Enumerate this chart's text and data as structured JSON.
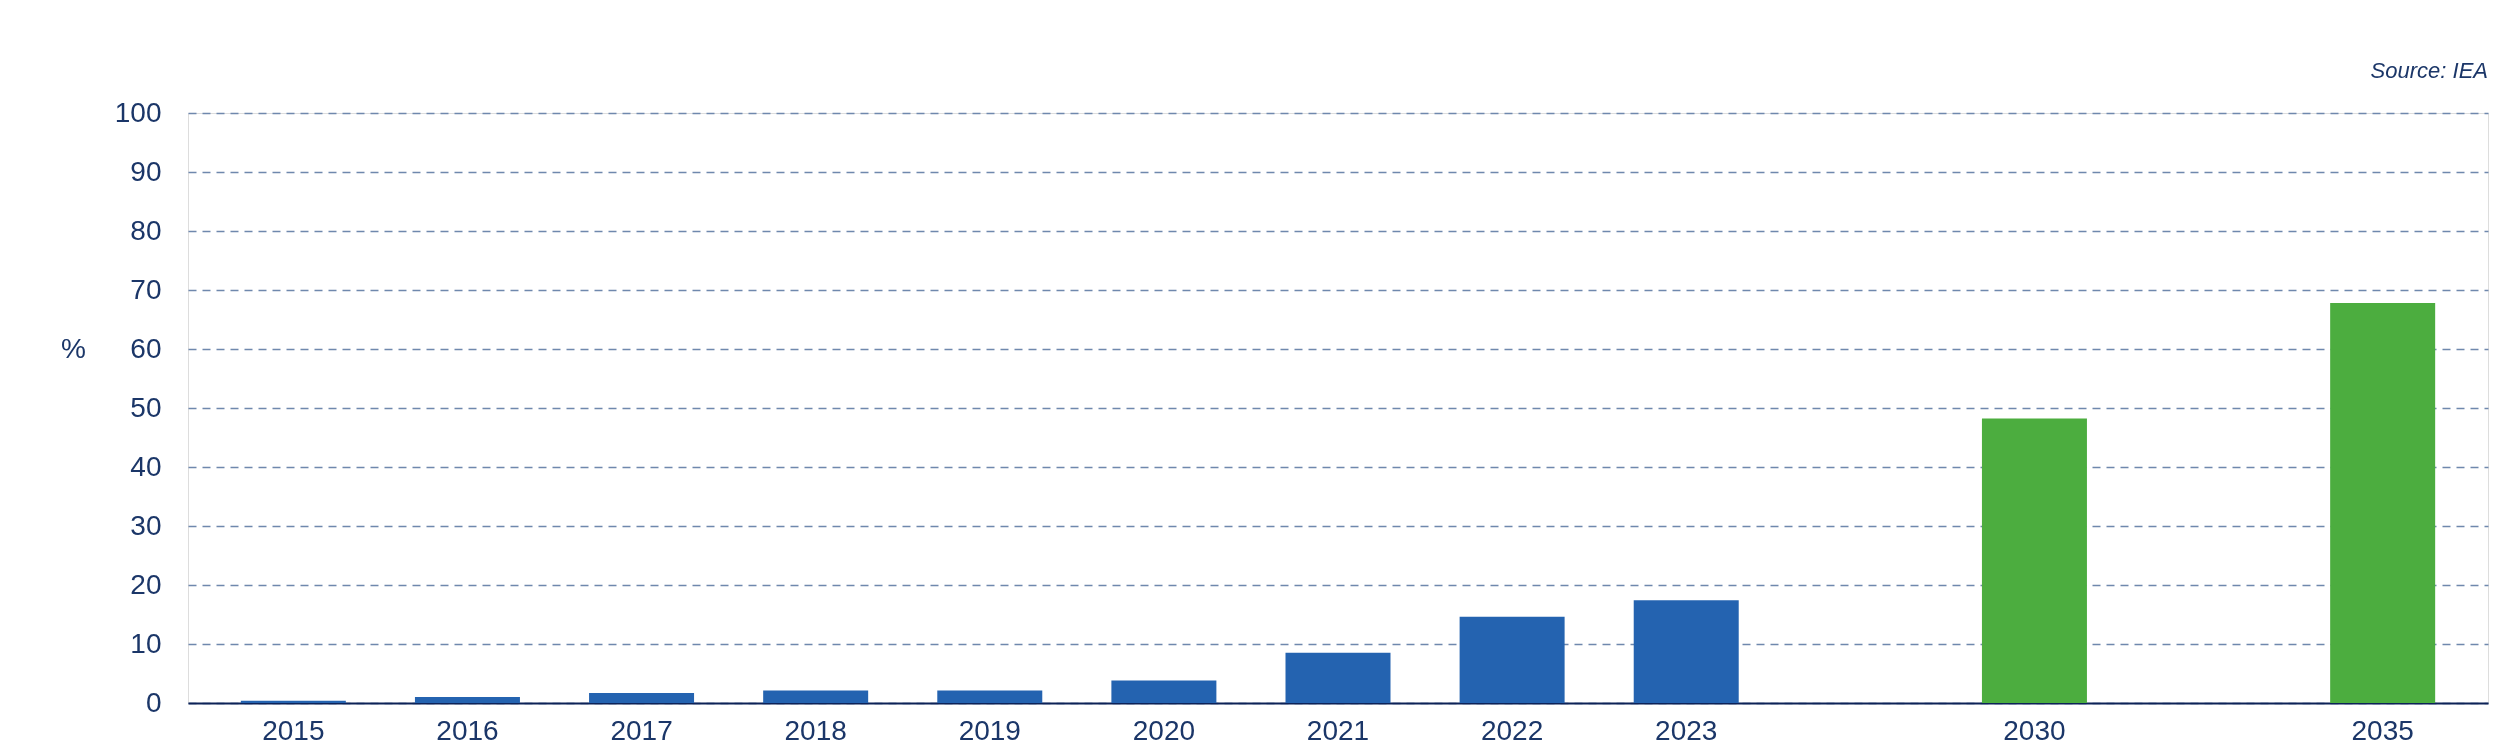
{
  "chart_data": {
    "type": "bar",
    "categories": [
      "2015",
      "2016",
      "2017",
      "2018",
      "2019",
      "2020",
      "2021",
      "2022",
      "2023",
      null,
      "2030",
      null,
      "2035"
    ],
    "values": [
      0.4,
      1.0,
      1.7,
      2.1,
      2.1,
      3.8,
      8.5,
      14.6,
      17.4,
      null,
      48.2,
      null,
      67.8
    ],
    "colors": [
      "#2463b0",
      "#2463b0",
      "#2463b0",
      "#2463b0",
      "#2463b0",
      "#2463b0",
      "#2463b0",
      "#2463b0",
      "#2463b0",
      "#2463b0",
      "#4cad3f",
      "#4cad3f",
      "#4cad3f"
    ],
    "ylabel": "%",
    "ylim": [
      0,
      100
    ],
    "yticks": [
      0,
      10,
      20,
      30,
      40,
      50,
      60,
      70,
      80,
      90,
      100
    ],
    "grid": "y",
    "annotations": [
      "Source: IEA"
    ]
  }
}
